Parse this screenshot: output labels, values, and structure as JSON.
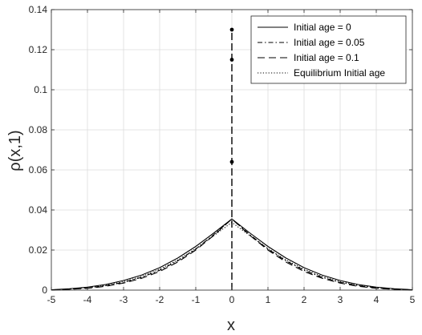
{
  "chart_data": {
    "type": "line",
    "title": "",
    "xlabel": "x",
    "ylabel": "ρ(x,1)",
    "xlim": [
      -5,
      5
    ],
    "ylim": [
      0,
      0.14
    ],
    "xticks": [
      "-5",
      "-4",
      "-3",
      "-2",
      "-1",
      "0",
      "1",
      "2",
      "3",
      "4",
      "5"
    ],
    "yticks": [
      "0",
      "0.02",
      "0.04",
      "0.06",
      "0.08",
      "0.1",
      "0.12",
      "0.14"
    ],
    "grid": true,
    "legend_position": "top-right",
    "series": [
      {
        "name": "Initial age = 0",
        "style": "solid",
        "x": [
          -5,
          -4.5,
          -4,
          -3.5,
          -3,
          -2.5,
          -2,
          -1.5,
          -1,
          -0.5,
          0,
          0.5,
          1,
          1.5,
          2,
          2.5,
          3,
          3.5,
          4,
          4.5,
          5
        ],
        "y": [
          0.0002,
          0.0007,
          0.0015,
          0.0028,
          0.0048,
          0.0075,
          0.0112,
          0.016,
          0.0218,
          0.0285,
          0.0355,
          0.0285,
          0.0218,
          0.016,
          0.0112,
          0.0075,
          0.0048,
          0.0028,
          0.0015,
          0.0007,
          0.0002
        ],
        "point_mass": null
      },
      {
        "name": "Initial age = 0.05",
        "style": "dashdot",
        "x": [
          -5,
          -4.5,
          -4,
          -3.5,
          -3,
          -2.5,
          -2,
          -1.5,
          -1,
          -0.5,
          0,
          0.5,
          1,
          1.5,
          2,
          2.5,
          3,
          3.5,
          4,
          4.5,
          5
        ],
        "y": [
          0.0001,
          0.0005,
          0.0011,
          0.0022,
          0.0039,
          0.0064,
          0.0099,
          0.0146,
          0.0205,
          0.0277,
          0.0355,
          0.0277,
          0.0205,
          0.0146,
          0.0099,
          0.0064,
          0.0039,
          0.0022,
          0.0011,
          0.0005,
          0.0001
        ],
        "point_mass": 0.115
      },
      {
        "name": "Initial age = 0.1",
        "style": "dashed",
        "x": [
          -5,
          -4.5,
          -4,
          -3.5,
          -3,
          -2.5,
          -2,
          -1.5,
          -1,
          -0.5,
          0,
          0.5,
          1,
          1.5,
          2,
          2.5,
          3,
          3.5,
          4,
          4.5,
          5
        ],
        "y": [
          0.0001,
          0.0004,
          0.0009,
          0.0019,
          0.0035,
          0.0059,
          0.0093,
          0.014,
          0.02,
          0.0273,
          0.0355,
          0.0273,
          0.02,
          0.014,
          0.0093,
          0.0059,
          0.0035,
          0.0019,
          0.0009,
          0.0004,
          0.0001
        ],
        "point_mass": 0.13
      },
      {
        "name": "Equilibrium Initial age",
        "style": "dotted",
        "x": [
          -5,
          -4.5,
          -4,
          -3.5,
          -3,
          -2.5,
          -2,
          -1.5,
          -1,
          -0.5,
          0,
          0.5,
          1,
          1.5,
          2,
          2.5,
          3,
          3.5,
          4,
          4.5,
          5
        ],
        "y": [
          0.0001,
          0.0005,
          0.0012,
          0.0024,
          0.0042,
          0.0068,
          0.0104,
          0.015,
          0.0207,
          0.0272,
          0.0338,
          0.0272,
          0.0207,
          0.015,
          0.0104,
          0.0068,
          0.0042,
          0.0024,
          0.0012,
          0.0005,
          0.0001
        ],
        "point_mass": 0.064
      }
    ]
  }
}
